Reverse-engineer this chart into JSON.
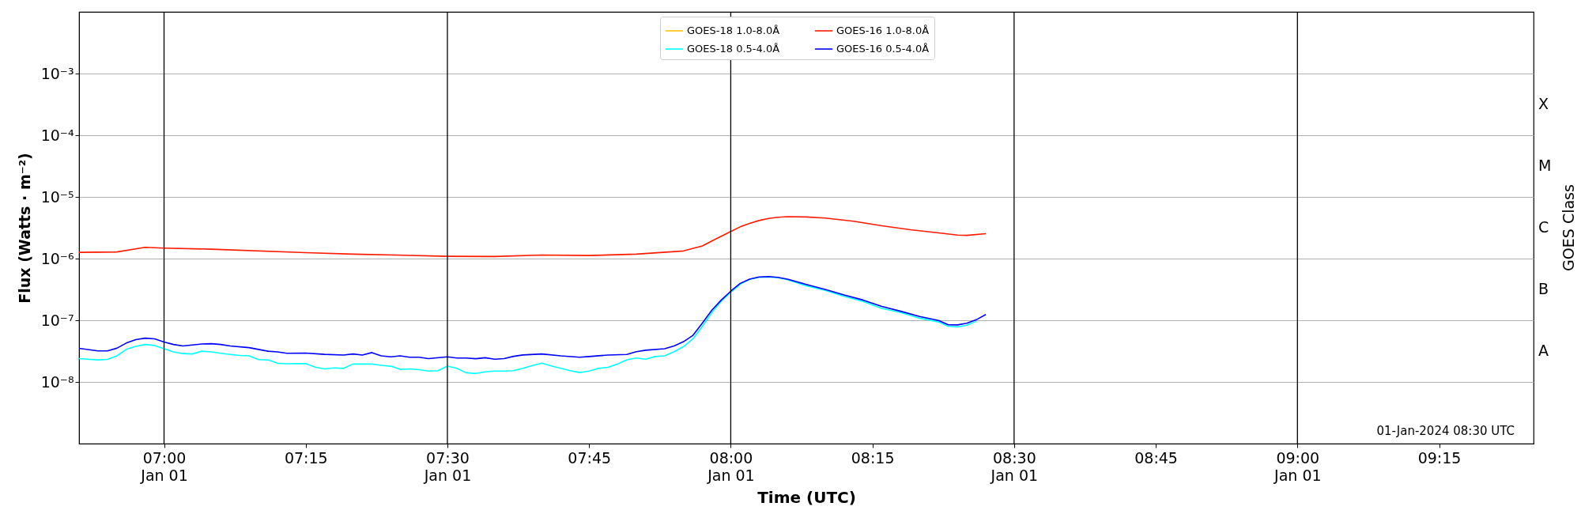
{
  "chart_data": {
    "type": "line",
    "xlabel": "Time (UTC)",
    "ylabel": "Flux (Watts · m⁻²)",
    "y2label": "GOES Class",
    "log": "y",
    "grid": "y",
    "legend": "top",
    "line_style": "solid",
    "xlim": [
      "2024-01-01T06:51",
      "2024-01-01T09:25"
    ],
    "xticks": [
      {
        "value": "2024-01-01T07:00",
        "label": "07:00\nJan 01"
      },
      {
        "value": "2024-01-01T07:15",
        "label": "07:15"
      },
      {
        "value": "2024-01-01T07:30",
        "label": "07:30\nJan 01"
      },
      {
        "value": "2024-01-01T07:45",
        "label": "07:45"
      },
      {
        "value": "2024-01-01T08:00",
        "label": "08:00\nJan 01"
      },
      {
        "value": "2024-01-01T08:15",
        "label": "08:15"
      },
      {
        "value": "2024-01-01T08:30",
        "label": "08:30\nJan 01"
      },
      {
        "value": "2024-01-01T08:45",
        "label": "08:45"
      },
      {
        "value": "2024-01-01T09:00",
        "label": "09:00\nJan 01"
      },
      {
        "value": "2024-01-01T09:15",
        "label": "09:15"
      }
    ],
    "ylim": [
      1e-09,
      0.01
    ],
    "yticks": [
      {
        "value": 1e-08,
        "label": "10⁻⁸"
      },
      {
        "value": 1e-07,
        "label": "10⁻⁷"
      },
      {
        "value": 1e-06,
        "label": "10⁻⁶"
      },
      {
        "value": 1e-05,
        "label": "10⁻⁵"
      },
      {
        "value": 0.0001,
        "label": "10⁻⁴"
      },
      {
        "value": 0.001,
        "label": "10⁻³"
      }
    ],
    "ref_lines": [
      {
        "axis": "x",
        "value": "2024-01-01T07:00",
        "color": "#000000"
      },
      {
        "axis": "x",
        "value": "2024-01-01T07:30",
        "color": "#000000"
      },
      {
        "axis": "x",
        "value": "2024-01-01T08:00",
        "color": "#000000"
      },
      {
        "axis": "x",
        "value": "2024-01-01T08:30",
        "color": "#000000"
      },
      {
        "axis": "x",
        "value": "2024-01-01T09:00",
        "color": "#000000"
      }
    ],
    "annotations": [
      "01-Jan-2024 08:30 UTC",
      "A",
      "B",
      "C",
      "M",
      "X"
    ],
    "series": [
      {
        "name": "GOES-18 1.0-8.0Å",
        "color": "#ffc000"
      },
      {
        "name": "GOES-18 0.5-4.0Å",
        "color": "#00ffff",
        "x": [
          "2024-01-01T06:51",
          "2024-01-01T06:53",
          "2024-01-01T06:54",
          "2024-01-01T06:55",
          "2024-01-01T06:56",
          "2024-01-01T06:57",
          "2024-01-01T06:58",
          "2024-01-01T06:59",
          "2024-01-01T07:00",
          "2024-01-01T07:01",
          "2024-01-01T07:02",
          "2024-01-01T07:03",
          "2024-01-01T07:04",
          "2024-01-01T07:05",
          "2024-01-01T07:06",
          "2024-01-01T07:07",
          "2024-01-01T07:08",
          "2024-01-01T07:09",
          "2024-01-01T07:10",
          "2024-01-01T07:11",
          "2024-01-01T07:12",
          "2024-01-01T07:13",
          "2024-01-01T07:14",
          "2024-01-01T07:15",
          "2024-01-01T07:16",
          "2024-01-01T07:17",
          "2024-01-01T07:18",
          "2024-01-01T07:19",
          "2024-01-01T07:20",
          "2024-01-01T07:22",
          "2024-01-01T07:23",
          "2024-01-01T07:24",
          "2024-01-01T07:25",
          "2024-01-01T07:26",
          "2024-01-01T07:27",
          "2024-01-01T07:28",
          "2024-01-01T07:29",
          "2024-01-01T07:30",
          "2024-01-01T07:31",
          "2024-01-01T07:32",
          "2024-01-01T07:33",
          "2024-01-01T07:34",
          "2024-01-01T07:35",
          "2024-01-01T07:36",
          "2024-01-01T07:37",
          "2024-01-01T07:38",
          "2024-01-01T07:39",
          "2024-01-01T07:40",
          "2024-01-01T07:41",
          "2024-01-01T07:42",
          "2024-01-01T07:43",
          "2024-01-01T07:44",
          "2024-01-01T07:45",
          "2024-01-01T07:46",
          "2024-01-01T07:47",
          "2024-01-01T07:48",
          "2024-01-01T07:49",
          "2024-01-01T07:50",
          "2024-01-01T07:51",
          "2024-01-01T07:52",
          "2024-01-01T07:53",
          "2024-01-01T07:54",
          "2024-01-01T07:55",
          "2024-01-01T07:56",
          "2024-01-01T07:57",
          "2024-01-01T07:58",
          "2024-01-01T07:59",
          "2024-01-01T08:00",
          "2024-01-01T08:01",
          "2024-01-01T08:02",
          "2024-01-01T08:03",
          "2024-01-01T08:04",
          "2024-01-01T08:05",
          "2024-01-01T08:06",
          "2024-01-01T08:08",
          "2024-01-01T08:10",
          "2024-01-01T08:12",
          "2024-01-01T08:14",
          "2024-01-01T08:16",
          "2024-01-01T08:18",
          "2024-01-01T08:20",
          "2024-01-01T08:22",
          "2024-01-01T08:23",
          "2024-01-01T08:24",
          "2024-01-01T08:25",
          "2024-01-01T08:26"
        ],
        "values": [
          2.39e-08,
          2.28e-08,
          2.32e-08,
          2.65e-08,
          3.37e-08,
          3.78e-08,
          4.05e-08,
          3.9e-08,
          3.45e-08,
          3.07e-08,
          2.88e-08,
          2.84e-08,
          3.15e-08,
          3.07e-08,
          2.91e-08,
          2.79e-08,
          2.69e-08,
          2.65e-08,
          2.3e-08,
          2.28e-08,
          2.01e-08,
          1.97e-08,
          1.99e-08,
          1.98e-08,
          1.74e-08,
          1.63e-08,
          1.69e-08,
          1.66e-08,
          1.95e-08,
          1.95e-08,
          1.86e-08,
          1.8e-08,
          1.6e-08,
          1.63e-08,
          1.58e-08,
          1.5e-08,
          1.52e-08,
          1.8e-08,
          1.66e-08,
          1.41e-08,
          1.37e-08,
          1.46e-08,
          1.5e-08,
          1.5e-08,
          1.52e-08,
          1.66e-08,
          1.84e-08,
          2.02e-08,
          1.82e-08,
          1.66e-08,
          1.52e-08,
          1.42e-08,
          1.5e-08,
          1.66e-08,
          1.73e-08,
          1.95e-08,
          2.28e-08,
          2.44e-08,
          2.34e-08,
          2.58e-08,
          2.65e-08,
          3.1e-08,
          3.74e-08,
          5e-08,
          8.03e-08,
          1.33e-07,
          2.05e-07,
          2.85e-07,
          3.85e-07,
          4.6e-07,
          4.97e-07,
          5.03e-07,
          4.9e-07,
          4.53e-07,
          3.61e-07,
          3.04e-07,
          2.44e-07,
          2.02e-07,
          1.56e-07,
          1.33e-07,
          1.08e-07,
          9.4e-08,
          8e-08,
          7.8e-08,
          8.3e-08,
          9.6e-08
        ]
      },
      {
        "name": "GOES-16 1.0-8.0Å",
        "color": "#ff1a00",
        "x": [
          "2024-01-01T06:51",
          "2024-01-01T06:55",
          "2024-01-01T06:58",
          "2024-01-01T07:00",
          "2024-01-01T07:05",
          "2024-01-01T07:15",
          "2024-01-01T07:20",
          "2024-01-01T07:30",
          "2024-01-01T07:35",
          "2024-01-01T07:40",
          "2024-01-01T07:45",
          "2024-01-01T07:50",
          "2024-01-01T07:55",
          "2024-01-01T07:57",
          "2024-01-01T07:58",
          "2024-01-01T08:00",
          "2024-01-01T08:01",
          "2024-01-01T08:02",
          "2024-01-01T08:03",
          "2024-01-01T08:04",
          "2024-01-01T08:05",
          "2024-01-01T08:06",
          "2024-01-01T08:08",
          "2024-01-01T08:10",
          "2024-01-01T08:13",
          "2024-01-01T08:16",
          "2024-01-01T08:19",
          "2024-01-01T08:22",
          "2024-01-01T08:24",
          "2024-01-01T08:25",
          "2024-01-01T08:27"
        ],
        "values": [
          1.26e-06,
          1.28e-06,
          1.52e-06,
          1.48e-06,
          1.42e-06,
          1.25e-06,
          1.18e-06,
          1.09e-06,
          1.08e-06,
          1.14e-06,
          1.12e-06,
          1.18e-06,
          1.33e-06,
          1.6e-06,
          1.93e-06,
          2.75e-06,
          3.27e-06,
          3.73e-06,
          4.14e-06,
          4.48e-06,
          4.67e-06,
          4.79e-06,
          4.73e-06,
          4.54e-06,
          4.03e-06,
          3.4e-06,
          2.94e-06,
          2.61e-06,
          2.41e-06,
          2.38e-06,
          2.54e-06
        ]
      },
      {
        "name": "GOES-16 0.5-4.0Å",
        "color": "#0000ff",
        "x": [
          "2024-01-01T06:51",
          "2024-01-01T06:53",
          "2024-01-01T06:54",
          "2024-01-01T06:55",
          "2024-01-01T06:56",
          "2024-01-01T06:57",
          "2024-01-01T06:58",
          "2024-01-01T06:59",
          "2024-01-01T07:00",
          "2024-01-01T07:01",
          "2024-01-01T07:02",
          "2024-01-01T07:04",
          "2024-01-01T07:05",
          "2024-01-01T07:06",
          "2024-01-01T07:07",
          "2024-01-01T07:09",
          "2024-01-01T07:11",
          "2024-01-01T07:12",
          "2024-01-01T07:13",
          "2024-01-01T07:15",
          "2024-01-01T07:17",
          "2024-01-01T07:19",
          "2024-01-01T07:20",
          "2024-01-01T07:21",
          "2024-01-01T07:22",
          "2024-01-01T07:23",
          "2024-01-01T07:24",
          "2024-01-01T07:25",
          "2024-01-01T07:26",
          "2024-01-01T07:27",
          "2024-01-01T07:28",
          "2024-01-01T07:30",
          "2024-01-01T07:31",
          "2024-01-01T07:32",
          "2024-01-01T07:33",
          "2024-01-01T07:34",
          "2024-01-01T07:35",
          "2024-01-01T07:36",
          "2024-01-01T07:37",
          "2024-01-01T07:38",
          "2024-01-01T07:40",
          "2024-01-01T07:42",
          "2024-01-01T07:44",
          "2024-01-01T07:45",
          "2024-01-01T07:47",
          "2024-01-01T07:49",
          "2024-01-01T07:50",
          "2024-01-01T07:51",
          "2024-01-01T07:53",
          "2024-01-01T07:54",
          "2024-01-01T07:55",
          "2024-01-01T07:56",
          "2024-01-01T07:57",
          "2024-01-01T07:58",
          "2024-01-01T07:59",
          "2024-01-01T08:00",
          "2024-01-01T08:01",
          "2024-01-01T08:02",
          "2024-01-01T08:03",
          "2024-01-01T08:04",
          "2024-01-01T08:05",
          "2024-01-01T08:06",
          "2024-01-01T08:08",
          "2024-01-01T08:10",
          "2024-01-01T08:12",
          "2024-01-01T08:14",
          "2024-01-01T08:16",
          "2024-01-01T08:18",
          "2024-01-01T08:20",
          "2024-01-01T08:22",
          "2024-01-01T08:23",
          "2024-01-01T08:24",
          "2024-01-01T08:25",
          "2024-01-01T08:26",
          "2024-01-01T08:27"
        ],
        "values": [
          3.5e-08,
          3.19e-08,
          3.19e-08,
          3.52e-08,
          4.27e-08,
          4.86e-08,
          5.13e-08,
          5e-08,
          4.44e-08,
          4.05e-08,
          3.84e-08,
          4.12e-08,
          4.17e-08,
          4.05e-08,
          3.84e-08,
          3.6e-08,
          3.15e-08,
          3.07e-08,
          2.91e-08,
          2.94e-08,
          2.8e-08,
          2.73e-08,
          2.84e-08,
          2.73e-08,
          2.99e-08,
          2.65e-08,
          2.55e-08,
          2.65e-08,
          2.52e-08,
          2.52e-08,
          2.39e-08,
          2.55e-08,
          2.44e-08,
          2.44e-08,
          2.38e-08,
          2.47e-08,
          2.34e-08,
          2.39e-08,
          2.6e-08,
          2.74e-08,
          2.84e-08,
          2.65e-08,
          2.52e-08,
          2.58e-08,
          2.73e-08,
          2.79e-08,
          3.1e-08,
          3.27e-08,
          3.45e-08,
          3.84e-08,
          4.5e-08,
          5.7e-08,
          9.04e-08,
          1.46e-07,
          2.13e-07,
          2.96e-07,
          3.96e-07,
          4.65e-07,
          5.03e-07,
          5.1e-07,
          4.97e-07,
          4.65e-07,
          3.81e-07,
          3.17e-07,
          2.57e-07,
          2.13e-07,
          1.68e-07,
          1.4e-07,
          1.15e-07,
          9.9e-08,
          8.48e-08,
          8.4e-08,
          8.93e-08,
          1.02e-07,
          1.24e-07
        ]
      }
    ]
  }
}
